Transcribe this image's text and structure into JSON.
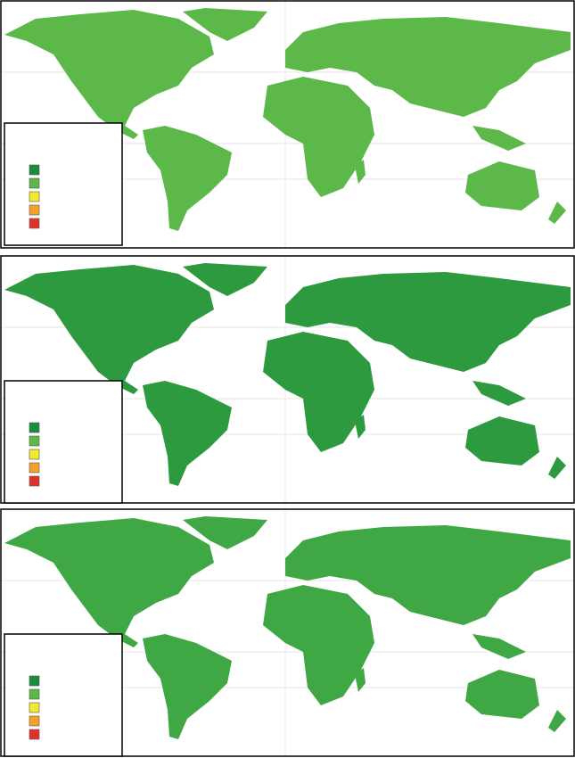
{
  "panels": [
    {
      "legend": {
        "colors": [
          "#1a8c3c",
          "#5cb848",
          "#f2ea2e",
          "#f4a12a",
          "#e2312b"
        ]
      }
    },
    {
      "legend": {
        "colors": [
          "#1a8c3c",
          "#5cb848",
          "#f2ea2e",
          "#f4a12a",
          "#e2312b"
        ]
      }
    },
    {
      "legend": {
        "colors": [
          "#1a8c3c",
          "#5cb848",
          "#f2ea2e",
          "#f4a12a",
          "#e2312b"
        ]
      }
    }
  ]
}
